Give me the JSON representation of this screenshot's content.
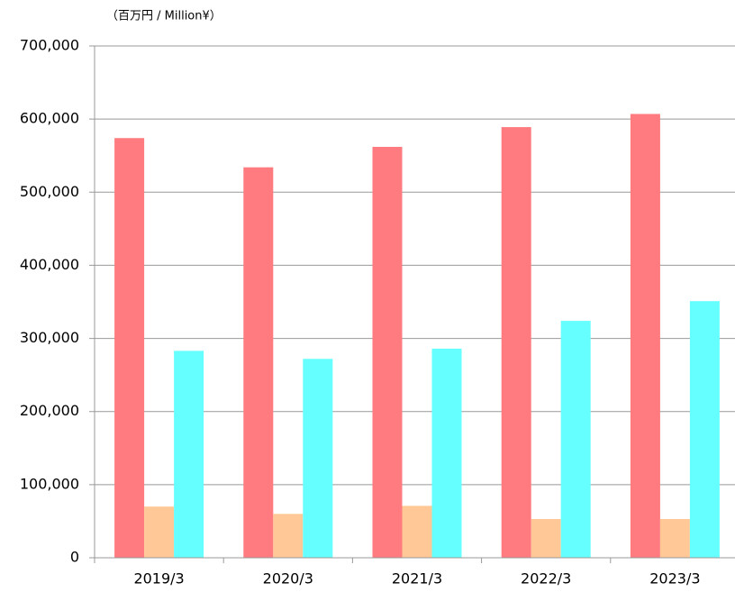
{
  "chart_data": {
    "type": "bar",
    "subtitle": "（百万円 / Million¥）",
    "categories": [
      "2019/3",
      "2020/3",
      "2021/3",
      "2022/3",
      "2023/3"
    ],
    "series": [
      {
        "color": "#ff7b7f",
        "values": [
          574000,
          534000,
          562000,
          589000,
          607000
        ]
      },
      {
        "color": "#ffc896",
        "values": [
          70000,
          60000,
          71000,
          53000,
          53000
        ]
      },
      {
        "color": "#66ffff",
        "values": [
          283000,
          272000,
          286000,
          324000,
          351000
        ]
      }
    ],
    "ylim": [
      0,
      700000
    ],
    "yticks": [
      0,
      {
        "value": 100000,
        "label": "100,000"
      },
      {
        "value": 200000,
        "label": "200,000"
      },
      {
        "value": 300000,
        "label": "300,000"
      },
      {
        "value": 400000,
        "label": "400,000"
      },
      {
        "value": 500000,
        "label": "500,000"
      },
      {
        "value": 600000,
        "label": "600,000"
      },
      {
        "value": 700000,
        "label": "700,000"
      }
    ],
    "grid": true
  }
}
